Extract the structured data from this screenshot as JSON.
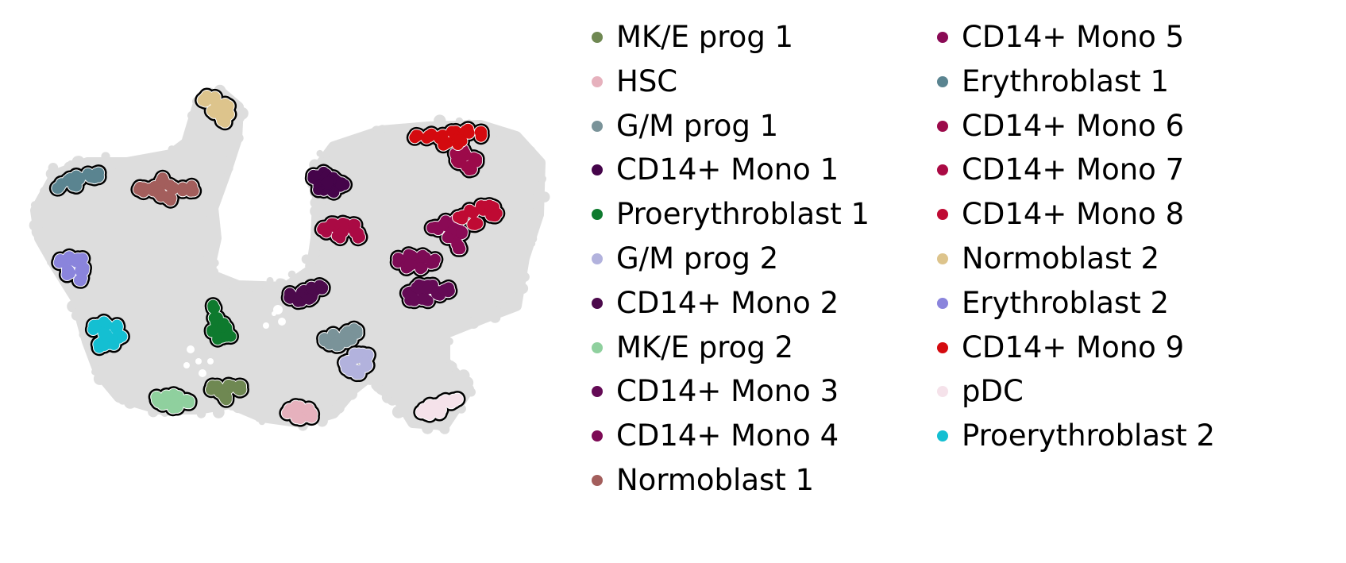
{
  "chart_data": {
    "type": "scatter",
    "title": "",
    "xlabel": "",
    "ylabel": "",
    "axes_visible": false,
    "grid": false,
    "legend_position": "right, two columns",
    "background_points_color": "#dddddd",
    "highlight_outline_color": "#000000",
    "series": [
      {
        "name": "MK/E prog 1",
        "color": "#6f8852"
      },
      {
        "name": "HSC",
        "color": "#e6b1bd"
      },
      {
        "name": "G/M prog 1",
        "color": "#7a9399"
      },
      {
        "name": "CD14+ Mono 1",
        "color": "#45044a"
      },
      {
        "name": "Proerythroblast 1",
        "color": "#0e7a2e"
      },
      {
        "name": "G/M prog 2",
        "color": "#b2b2dd"
      },
      {
        "name": "CD14+ Mono 2",
        "color": "#4c0a4c"
      },
      {
        "name": "MK/E prog 2",
        "color": "#8fd09e"
      },
      {
        "name": "CD14+ Mono 3",
        "color": "#640a55"
      },
      {
        "name": "CD14+ Mono 4",
        "color": "#7d0a55"
      },
      {
        "name": "Normoblast 1",
        "color": "#a35e5c"
      },
      {
        "name": "CD14+ Mono 5",
        "color": "#8a0a55"
      },
      {
        "name": "Erythroblast 1",
        "color": "#5a8490"
      },
      {
        "name": "CD14+ Mono 6",
        "color": "#9c0a4a"
      },
      {
        "name": "CD14+ Mono 7",
        "color": "#aa0a44"
      },
      {
        "name": "CD14+ Mono 8",
        "color": "#bf0a33"
      },
      {
        "name": "Normoblast 2",
        "color": "#ddc48c"
      },
      {
        "name": "Erythroblast 2",
        "color": "#8a84dc"
      },
      {
        "name": "CD14+ Mono 9",
        "color": "#d40a0f"
      },
      {
        "name": "pDC",
        "color": "#f5e2ea"
      },
      {
        "name": "Proerythroblast 2",
        "color": "#14bfd2"
      }
    ]
  }
}
